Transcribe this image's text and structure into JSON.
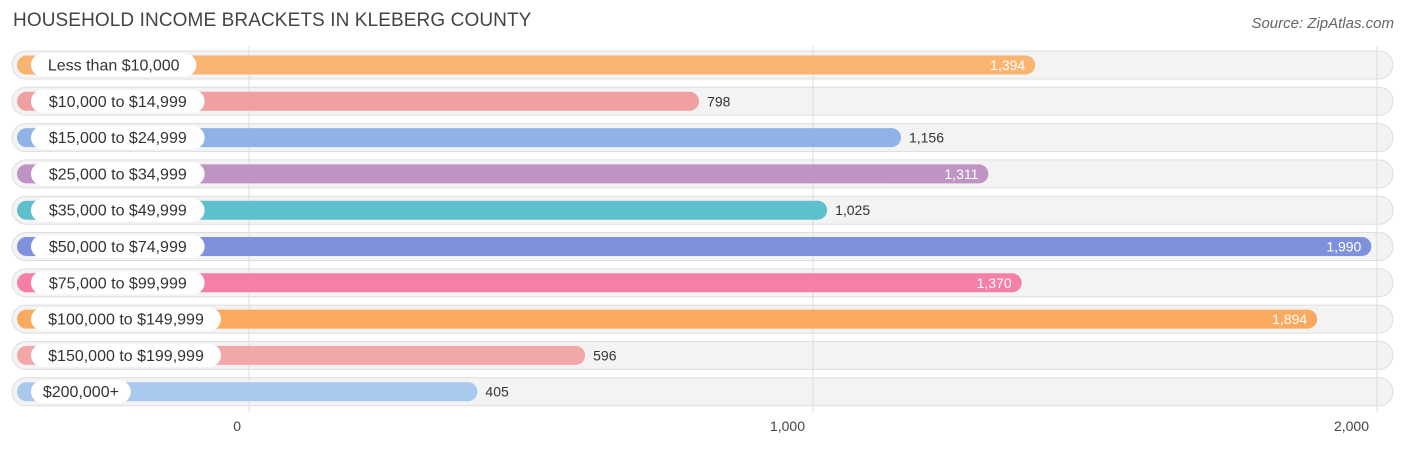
{
  "title": "HOUSEHOLD INCOME BRACKETS IN KLEBERG COUNTY",
  "source": "Source: ZipAtlas.com",
  "chart_data": {
    "type": "bar",
    "orientation": "horizontal",
    "title": "HOUSEHOLD INCOME BRACKETS IN KLEBERG COUNTY",
    "xlabel": "",
    "ylabel": "",
    "xlim": [
      0,
      2000
    ],
    "grid": true,
    "categories": [
      "Less than $10,000",
      "$10,000 to $14,999",
      "$15,000 to $24,999",
      "$25,000 to $34,999",
      "$35,000 to $49,999",
      "$50,000 to $74,999",
      "$75,000 to $99,999",
      "$100,000 to $149,999",
      "$150,000 to $199,999",
      "$200,000+"
    ],
    "values": [
      1394,
      798,
      1156,
      1311,
      1025,
      1990,
      1370,
      1894,
      596,
      405
    ],
    "value_labels": [
      "1,394",
      "798",
      "1,156",
      "1,311",
      "1,025",
      "1,990",
      "1,370",
      "1,894",
      "596",
      "405"
    ],
    "colors": [
      "#f9b472",
      "#f0a0a0",
      "#8fb3e6",
      "#bf93c4",
      "#5ec0cc",
      "#7f90dd",
      "#f580a6",
      "#f9aa5e",
      "#f2a8a8",
      "#a8c8ee"
    ],
    "ticks": [
      0,
      1000,
      2000
    ],
    "tick_labels": [
      "0",
      "1,000",
      "2,000"
    ]
  }
}
